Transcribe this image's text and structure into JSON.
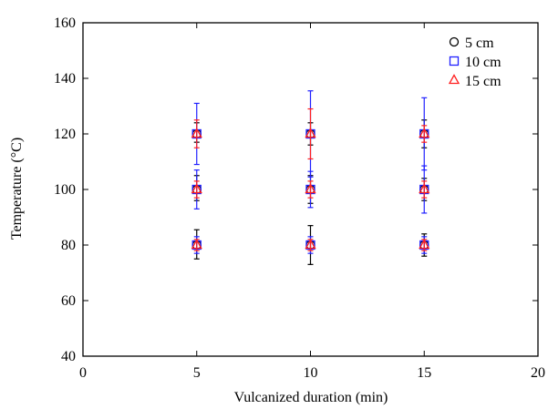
{
  "chart_data": {
    "type": "scatter",
    "xlabel": "Vulcanized duration (min)",
    "ylabel": "Temperature (°C)",
    "xlim": [
      0,
      20
    ],
    "ylim": [
      40,
      160
    ],
    "xticks": [
      0,
      5,
      10,
      15,
      20
    ],
    "yticks": [
      40,
      60,
      80,
      100,
      120,
      140,
      160
    ],
    "grid": false,
    "legend_position": "top-right",
    "series": [
      {
        "name": "5 cm",
        "marker": "circle",
        "color": "#000000",
        "points": [
          {
            "x": 5,
            "y": 80,
            "err_low": 5,
            "err_high": 5.5
          },
          {
            "x": 5,
            "y": 100,
            "err_low": 4,
            "err_high": 5
          },
          {
            "x": 5,
            "y": 120,
            "err_low": 3,
            "err_high": 4
          },
          {
            "x": 10,
            "y": 80,
            "err_low": 7,
            "err_high": 7
          },
          {
            "x": 10,
            "y": 100,
            "err_low": 5,
            "err_high": 5
          },
          {
            "x": 10,
            "y": 120,
            "err_low": 4,
            "err_high": 4
          },
          {
            "x": 15,
            "y": 80,
            "err_low": 4,
            "err_high": 4
          },
          {
            "x": 15,
            "y": 100,
            "err_low": 4,
            "err_high": 4
          },
          {
            "x": 15,
            "y": 120,
            "err_low": 5,
            "err_high": 5
          }
        ]
      },
      {
        "name": "10 cm",
        "marker": "square",
        "color": "#2020ff",
        "points": [
          {
            "x": 5,
            "y": 80,
            "err_low": 3,
            "err_high": 3
          },
          {
            "x": 5,
            "y": 100,
            "err_low": 7,
            "err_high": 7
          },
          {
            "x": 5,
            "y": 120,
            "err_low": 11,
            "err_high": 11
          },
          {
            "x": 10,
            "y": 80,
            "err_low": 3,
            "err_high": 3
          },
          {
            "x": 10,
            "y": 100,
            "err_low": 6.5,
            "err_high": 6.5
          },
          {
            "x": 10,
            "y": 120,
            "err_low": 15.5,
            "err_high": 15.5
          },
          {
            "x": 15,
            "y": 80,
            "err_low": 3,
            "err_high": 3
          },
          {
            "x": 15,
            "y": 100,
            "err_low": 8.5,
            "err_high": 8.5
          },
          {
            "x": 15,
            "y": 120,
            "err_low": 13,
            "err_high": 13
          }
        ]
      },
      {
        "name": "15 cm",
        "marker": "triangle",
        "color": "#ff2020",
        "points": [
          {
            "x": 5,
            "y": 80,
            "err_low": 2,
            "err_high": 2
          },
          {
            "x": 5,
            "y": 100,
            "err_low": 3,
            "err_high": 3
          },
          {
            "x": 5,
            "y": 120,
            "err_low": 5,
            "err_high": 5
          },
          {
            "x": 10,
            "y": 80,
            "err_low": 2,
            "err_high": 2
          },
          {
            "x": 10,
            "y": 100,
            "err_low": 3,
            "err_high": 3
          },
          {
            "x": 10,
            "y": 120,
            "err_low": 9,
            "err_high": 9
          },
          {
            "x": 15,
            "y": 80,
            "err_low": 2,
            "err_high": 2
          },
          {
            "x": 15,
            "y": 100,
            "err_low": 3,
            "err_high": 3
          },
          {
            "x": 15,
            "y": 120,
            "err_low": 3,
            "err_high": 3
          }
        ]
      }
    ]
  }
}
